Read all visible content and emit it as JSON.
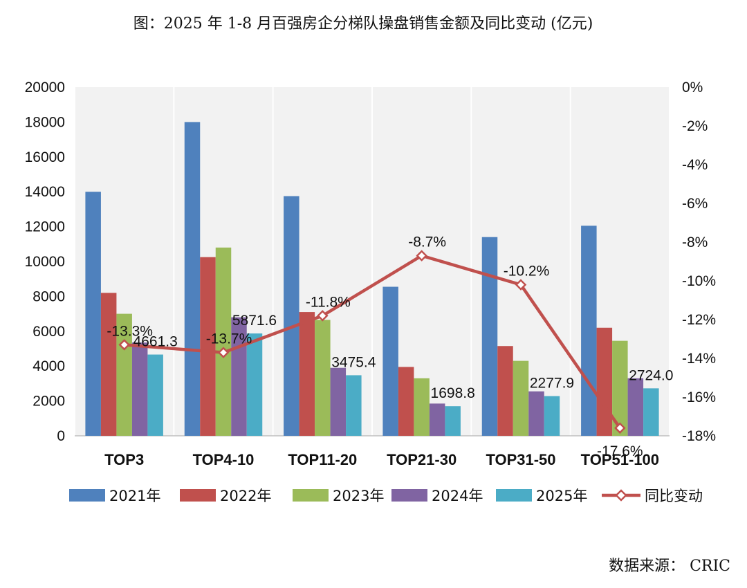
{
  "title": "图：2025 年 1-8 月百强房企分梯队操盘销售金额及同比变动 (亿元)",
  "source": "数据来源： CRIC",
  "chart_data": {
    "type": "bar",
    "categories": [
      "TOP3",
      "TOP4-10",
      "TOP11-20",
      "TOP21-30",
      "TOP31-50",
      "TOP51-100"
    ],
    "series": [
      {
        "name": "2021年",
        "color": "#4F81BD",
        "values": [
          14000,
          18000,
          13750,
          8550,
          11400,
          12050
        ]
      },
      {
        "name": "2022年",
        "color": "#C0504D",
        "values": [
          8200,
          10250,
          7100,
          3950,
          5150,
          6200
        ]
      },
      {
        "name": "2023年",
        "color": "#9BBB59",
        "values": [
          7000,
          10800,
          6650,
          3300,
          4300,
          5450
        ]
      },
      {
        "name": "2024年",
        "color": "#8064A2",
        "values": [
          5350,
          6800,
          3900,
          1850,
          2550,
          3300
        ]
      },
      {
        "name": "2025年",
        "color": "#4BACC6",
        "values": [
          4661.3,
          5871.6,
          3475.4,
          1698.8,
          2277.9,
          2724.0
        ]
      }
    ],
    "line_series": {
      "name": "同比变动",
      "color": "#C0504D",
      "values": [
        -13.3,
        -13.7,
        -11.8,
        -8.7,
        -10.2,
        -17.6
      ],
      "labels": [
        "-13.3%",
        "-13.7%",
        "-11.8%",
        "-8.7%",
        "-10.2%",
        "-17.6%"
      ]
    },
    "bar_labels": [
      "4661.3",
      "5871.6",
      "3475.4",
      "1698.8",
      "2277.9",
      "2724.0"
    ],
    "ylim": [
      0,
      20000
    ],
    "y_ticks": [
      "0",
      "2000",
      "4000",
      "6000",
      "8000",
      "10000",
      "12000",
      "14000",
      "16000",
      "18000",
      "20000"
    ],
    "y2lim": [
      -18,
      0
    ],
    "y2_ticks": [
      "-18%",
      "-16%",
      "-14%",
      "-12%",
      "-10%",
      "-8%",
      "-6%",
      "-4%",
      "-2%",
      "0%"
    ],
    "legend_position": "bottom",
    "grid": true
  }
}
